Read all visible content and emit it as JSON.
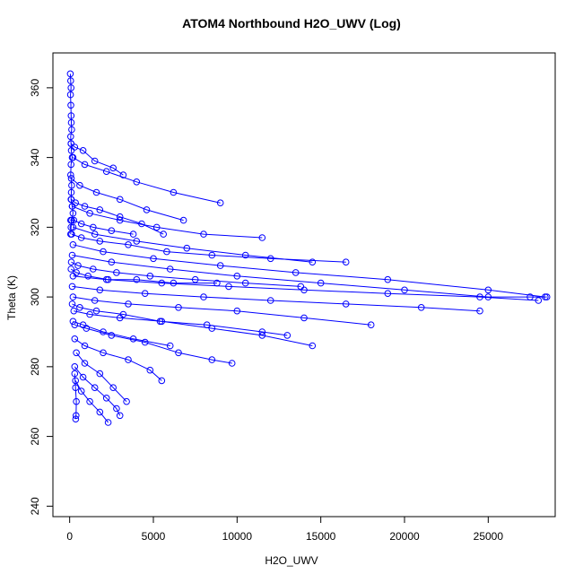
{
  "chart_data": {
    "type": "scatter",
    "title": "ATOM4 Northbound H2O_UWV (Log)",
    "xlabel": "H2O_UWV",
    "ylabel": "Theta (K)",
    "xlim": [
      -1000,
      29000
    ],
    "ylim": [
      237,
      370
    ],
    "x_ticks": [
      0,
      5000,
      10000,
      15000,
      20000,
      25000
    ],
    "y_ticks": [
      240,
      260,
      280,
      300,
      320,
      340,
      360
    ],
    "grid": false,
    "legend": "none",
    "color": "#0000ff",
    "series": [
      {
        "x": [
          40,
          60,
          80,
          50,
          70,
          90,
          100,
          120,
          60,
          80,
          100,
          150,
          80,
          60,
          120,
          100,
          80,
          150,
          200,
          120,
          80,
          60
        ],
        "y": [
          364,
          362,
          360,
          358,
          355,
          352,
          350,
          348,
          346,
          344,
          342,
          340,
          338,
          335,
          332,
          330,
          328,
          326,
          324,
          322,
          320,
          318
        ]
      },
      {
        "x": [
          80,
          300,
          800,
          1500,
          2600,
          3200
        ],
        "y": [
          344,
          343,
          342,
          339,
          337,
          335
        ]
      },
      {
        "x": [
          100,
          600,
          1600,
          3000,
          4600,
          6800
        ],
        "y": [
          334,
          332,
          330,
          328,
          325,
          322
        ]
      },
      {
        "x": [
          150,
          1200,
          3000,
          5200,
          8000,
          11500
        ],
        "y": [
          326,
          324,
          322,
          320,
          318,
          317
        ]
      },
      {
        "x": [
          200,
          1500,
          4000,
          7000,
          10500,
          14500
        ],
        "y": [
          320,
          318,
          316,
          314,
          312,
          310
        ]
      },
      {
        "x": [
          200,
          2000,
          5000,
          9000,
          13500,
          19000,
          25000,
          28400
        ],
        "y": [
          315,
          313,
          311,
          309,
          307,
          305,
          302,
          300
        ]
      },
      {
        "x": [
          150,
          2500,
          6000,
          10000,
          15000,
          20000,
          25000,
          27500,
          28500
        ],
        "y": [
          312,
          310,
          308,
          306,
          304,
          302,
          300,
          300,
          300
        ]
      },
      {
        "x": [
          200,
          2200,
          5500,
          9500,
          14000,
          19000,
          24500,
          28000
        ],
        "y": [
          306,
          305,
          304,
          303,
          302,
          301,
          300,
          299
        ]
      },
      {
        "x": [
          150,
          1800,
          4500,
          8000,
          12000,
          16500,
          21000,
          24500
        ],
        "y": [
          303,
          302,
          301,
          300,
          299,
          298,
          297,
          296
        ]
      },
      {
        "x": [
          200,
          1500,
          3500,
          6500,
          10000,
          14000,
          18000
        ],
        "y": [
          300,
          299,
          298,
          297,
          296,
          294,
          292
        ]
      },
      {
        "x": [
          250,
          1200,
          3000,
          5500,
          8500,
          11500,
          14500
        ],
        "y": [
          296,
          295,
          294,
          293,
          291,
          289,
          286
        ]
      },
      {
        "x": [
          300,
          1000,
          2500,
          4500,
          6500,
          8500,
          9700
        ],
        "y": [
          292,
          291,
          289,
          287,
          284,
          282,
          281
        ]
      },
      {
        "x": [
          300,
          900,
          2000,
          3500,
          4800,
          5500
        ],
        "y": [
          288,
          286,
          284,
          282,
          279,
          276
        ]
      },
      {
        "x": [
          400,
          900,
          1800,
          2600,
          3400
        ],
        "y": [
          284,
          281,
          278,
          274,
          270
        ]
      },
      {
        "x": [
          300,
          800,
          1500,
          2200,
          2800,
          3000
        ],
        "y": [
          280,
          277,
          274,
          271,
          268,
          266
        ]
      },
      {
        "x": [
          350,
          700,
          1200,
          1800,
          2300
        ],
        "y": [
          276,
          273,
          270,
          267,
          264
        ]
      },
      {
        "x": [
          300,
          350,
          400,
          380,
          360
        ],
        "y": [
          278,
          274,
          270,
          266,
          265
        ]
      },
      {
        "x": [
          200,
          900,
          2200,
          4000,
          6200,
          9000
        ],
        "y": [
          340,
          338,
          336,
          333,
          330,
          327
        ]
      },
      {
        "x": [
          120,
          700,
          1800,
          3500,
          5800,
          8500,
          12000,
          16500
        ],
        "y": [
          318,
          317,
          316,
          315,
          313,
          312,
          311,
          310
        ]
      },
      {
        "x": [
          100,
          500,
          1400,
          2800,
          4800,
          7500,
          10500,
          13800
        ],
        "y": [
          310,
          309,
          308,
          307,
          306,
          305,
          304,
          303
        ]
      },
      {
        "x": [
          80,
          400,
          1100,
          2300,
          4000,
          6200,
          8800
        ],
        "y": [
          308,
          307,
          306,
          305,
          305,
          304,
          304
        ]
      },
      {
        "x": [
          100,
          350,
          900,
          1800,
          3000,
          4300,
          5600
        ],
        "y": [
          328,
          327,
          326,
          325,
          323,
          321,
          318
        ]
      },
      {
        "x": [
          60,
          250,
          700,
          1400,
          2500,
          3800
        ],
        "y": [
          322,
          322,
          321,
          320,
          319,
          318
        ]
      },
      {
        "x": [
          150,
          600,
          1600,
          3200,
          5400,
          8200,
          11500,
          13000
        ],
        "y": [
          298,
          297,
          296,
          295,
          293,
          292,
          290,
          289
        ]
      },
      {
        "x": [
          200,
          800,
          2000,
          3800,
          6000
        ],
        "y": [
          293,
          292,
          290,
          288,
          286
        ]
      }
    ]
  }
}
